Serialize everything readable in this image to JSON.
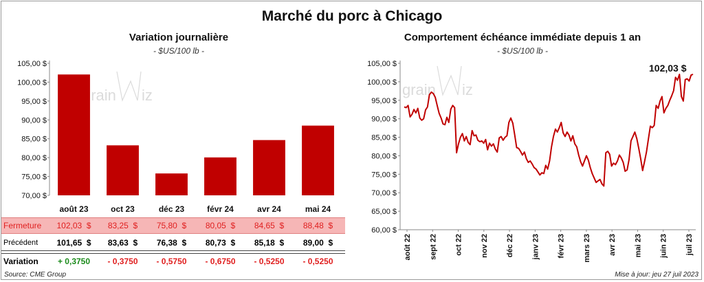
{
  "title": "Marché du porc à Chicago",
  "left_chart": {
    "title": "Variation journalière",
    "unit": "- $US/100 lb -"
  },
  "right_chart": {
    "title": "Comportement  échéance immédiate depuis 1 an",
    "unit": "- $US/100 lb -",
    "last_value_label": "102,03 $"
  },
  "table": {
    "rows": [
      {
        "label": "Fermeture",
        "values": [
          "102,03",
          "83,25",
          "75,80",
          "80,05",
          "84,65",
          "88,48"
        ],
        "suffix": "$"
      },
      {
        "label": "Précédent",
        "values": [
          "101,65",
          "83,63",
          "76,38",
          "80,73",
          "85,18",
          "89,00"
        ],
        "suffix": "$"
      },
      {
        "label": "Variation",
        "values": [
          "+ 0,3750",
          "- 0,3750",
          "- 0,5750",
          "- 0,6750",
          "- 0,5250",
          "- 0,5250"
        ]
      }
    ]
  },
  "source": "Source: CME Group",
  "updated": "Mise à jour: jeu 27 juil 2023",
  "colors": {
    "bar": "#c00000",
    "line": "#c00000",
    "fermeture_bg": "#f6b6b6",
    "positive": "#1a8a1a",
    "negative": "#e02020"
  },
  "chart_data": [
    {
      "type": "bar",
      "title": "Variation journalière",
      "subtitle": "- $US/100 lb -",
      "categories": [
        "août 23",
        "oct 23",
        "déc 23",
        "févr 24",
        "avr 24",
        "mai 24"
      ],
      "values": [
        102.03,
        83.25,
        75.8,
        80.05,
        84.65,
        88.48
      ],
      "ylim": [
        70,
        105
      ],
      "yticks": [
        70,
        75,
        80,
        85,
        90,
        95,
        100,
        105
      ],
      "ytick_labels": [
        "70,00 $",
        "75,00 $",
        "80,00 $",
        "85,00 $",
        "90,00 $",
        "95,00 $",
        "100,00 $",
        "105,00 $"
      ],
      "grid": false
    },
    {
      "type": "line",
      "title": "Comportement  échéance immédiate depuis 1 an",
      "subtitle": "- $US/100 lb -",
      "x_start": "août 22",
      "x_end": "juil 23",
      "xtick_labels": [
        "août 22",
        "sept 22",
        "oct 22",
        "nov 22",
        "déc 22",
        "janv 23",
        "févr 23",
        "mars 23",
        "avr 23",
        "mai 23",
        "juin 23",
        "juil 23"
      ],
      "ylim": [
        60,
        105
      ],
      "yticks": [
        60,
        65,
        70,
        75,
        80,
        85,
        90,
        95,
        100,
        105
      ],
      "ytick_labels": [
        "60,00 $",
        "65,00 $",
        "70,00 $",
        "75,00 $",
        "80,00 $",
        "85,00 $",
        "90,00 $",
        "95,00 $",
        "100,00 $",
        "105,00 $"
      ],
      "values": [
        93.2,
        93.0,
        93.6,
        90.5,
        91.2,
        92.5,
        91.6,
        92.8,
        90.2,
        89.6,
        90.0,
        92.4,
        93.2,
        96.5,
        97.2,
        96.8,
        95.8,
        93.6,
        91.5,
        90.2,
        88.6,
        88.4,
        90.4,
        89.0,
        92.6,
        93.6,
        93.0,
        80.8,
        83.2,
        85.0,
        86.0,
        84.0,
        85.2,
        83.6,
        83.0,
        86.8,
        85.4,
        85.6,
        84.2,
        83.8,
        84.0,
        83.4,
        84.4,
        81.6,
        83.4,
        82.6,
        83.2,
        81.8,
        81.0,
        84.8,
        85.2,
        84.2,
        85.0,
        85.4,
        89.0,
        90.2,
        88.8,
        85.6,
        82.2,
        82.0,
        81.2,
        80.2,
        81.0,
        79.2,
        78.2,
        78.6,
        77.8,
        76.8,
        76.4,
        75.6,
        74.8,
        75.4,
        75.2,
        77.4,
        76.4,
        78.6,
        82.4,
        85.2,
        87.2,
        86.4,
        87.6,
        89.0,
        86.2,
        85.2,
        86.4,
        85.6,
        84.0,
        85.4,
        83.2,
        82.4,
        80.2,
        78.4,
        77.2,
        78.6,
        80.0,
        78.8,
        76.8,
        75.2,
        74.0,
        72.8,
        73.2,
        73.6,
        72.4,
        71.8,
        80.8,
        81.2,
        80.4,
        77.2,
        78.0,
        77.6,
        78.6,
        80.2,
        79.4,
        78.2,
        75.8,
        76.2,
        79.0,
        84.0,
        85.2,
        86.4,
        84.6,
        82.0,
        79.2,
        76.0,
        78.4,
        81.0,
        84.6,
        88.0,
        87.6,
        88.2,
        93.6,
        92.8,
        94.8,
        96.0,
        91.6,
        92.8,
        93.6,
        95.0,
        96.2,
        97.6,
        101.2,
        100.4,
        102.0,
        96.0,
        94.8,
        100.6,
        100.8,
        100.2,
        101.8,
        102.03
      ],
      "last_value": 102.03,
      "grid": false
    }
  ]
}
